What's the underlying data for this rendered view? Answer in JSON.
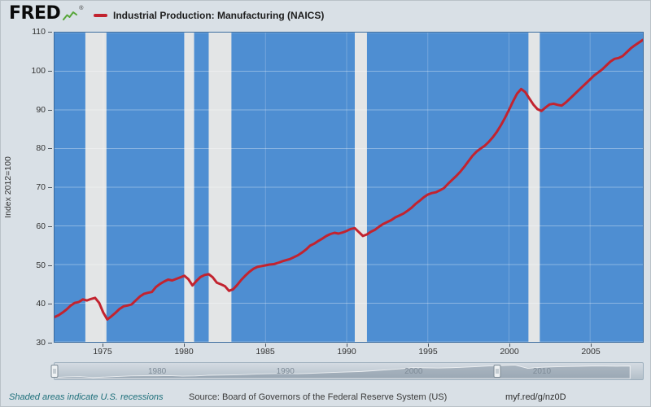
{
  "header": {
    "logo_text": "FRED",
    "logo_reg": "®",
    "series_title": "Industrial Production: Manufacturing (NAICS)"
  },
  "footer": {
    "recession_note": "Shaded areas indicate U.S. recessions",
    "source_label": "Source: Board of Governors of the Federal Reserve System (US)",
    "short_url": "myf.red/g/nz0D"
  },
  "colors": {
    "page_bg": "#d9e0e6",
    "plot_bg": "#4e8ed2",
    "recession_band": "#e3e5e6",
    "line": "#c2232f",
    "grid_horizontal": "rgba(255,255,255,0.35)",
    "grid_vertical": "rgba(255,255,255,0.22)",
    "link": "#1d6f7a",
    "axis_text": "#333333",
    "logo_spark": "#57a639"
  },
  "chart_data": {
    "type": "line",
    "title": "Industrial Production: Manufacturing (NAICS)",
    "xlabel": "",
    "ylabel": "Index 2012=100",
    "x_range": [
      1972,
      2008.25
    ],
    "y_range": [
      30,
      110
    ],
    "y_ticks": [
      30,
      40,
      50,
      60,
      70,
      80,
      90,
      100,
      110
    ],
    "x_ticks": [
      1975,
      1980,
      1985,
      1990,
      1995,
      2000,
      2005
    ],
    "grid": true,
    "legend_position": "top",
    "recessions": [
      [
        1973.9,
        1975.2
      ],
      [
        1980.0,
        1980.6
      ],
      [
        1981.5,
        1982.9
      ],
      [
        1990.5,
        1991.25
      ],
      [
        2001.2,
        2001.9
      ]
    ],
    "series": [
      {
        "name": "Industrial Production: Manufacturing (NAICS)",
        "color": "#c2232f",
        "points": [
          [
            1972.0,
            36.4
          ],
          [
            1972.25,
            36.9
          ],
          [
            1972.5,
            37.6
          ],
          [
            1972.75,
            38.4
          ],
          [
            1973.0,
            39.4
          ],
          [
            1973.25,
            40.1
          ],
          [
            1973.5,
            40.3
          ],
          [
            1973.75,
            41.0
          ],
          [
            1974.0,
            40.7
          ],
          [
            1974.25,
            41.1
          ],
          [
            1974.5,
            41.4
          ],
          [
            1974.75,
            40.1
          ],
          [
            1975.0,
            37.6
          ],
          [
            1975.25,
            35.8
          ],
          [
            1975.5,
            36.6
          ],
          [
            1975.75,
            37.5
          ],
          [
            1976.0,
            38.5
          ],
          [
            1976.25,
            39.2
          ],
          [
            1976.5,
            39.4
          ],
          [
            1976.75,
            39.7
          ],
          [
            1977.0,
            40.7
          ],
          [
            1977.25,
            41.7
          ],
          [
            1977.5,
            42.4
          ],
          [
            1977.75,
            42.7
          ],
          [
            1978.0,
            42.9
          ],
          [
            1978.25,
            44.2
          ],
          [
            1978.5,
            45.0
          ],
          [
            1978.75,
            45.6
          ],
          [
            1979.0,
            46.1
          ],
          [
            1979.25,
            45.9
          ],
          [
            1979.5,
            46.3
          ],
          [
            1979.75,
            46.7
          ],
          [
            1980.0,
            47.1
          ],
          [
            1980.25,
            46.2
          ],
          [
            1980.5,
            44.6
          ],
          [
            1980.75,
            45.8
          ],
          [
            1981.0,
            46.8
          ],
          [
            1981.25,
            47.3
          ],
          [
            1981.5,
            47.5
          ],
          [
            1981.75,
            46.7
          ],
          [
            1982.0,
            45.3
          ],
          [
            1982.25,
            44.9
          ],
          [
            1982.5,
            44.4
          ],
          [
            1982.75,
            43.2
          ],
          [
            1983.0,
            43.6
          ],
          [
            1983.25,
            44.7
          ],
          [
            1983.5,
            46.0
          ],
          [
            1983.75,
            47.1
          ],
          [
            1984.0,
            48.1
          ],
          [
            1984.25,
            48.9
          ],
          [
            1984.5,
            49.4
          ],
          [
            1984.75,
            49.6
          ],
          [
            1985.0,
            49.8
          ],
          [
            1985.25,
            50.0
          ],
          [
            1985.5,
            50.1
          ],
          [
            1985.75,
            50.4
          ],
          [
            1986.0,
            50.8
          ],
          [
            1986.25,
            51.1
          ],
          [
            1986.5,
            51.4
          ],
          [
            1986.75,
            51.9
          ],
          [
            1987.0,
            52.4
          ],
          [
            1987.25,
            53.1
          ],
          [
            1987.5,
            53.9
          ],
          [
            1987.75,
            54.9
          ],
          [
            1988.0,
            55.4
          ],
          [
            1988.25,
            56.1
          ],
          [
            1988.5,
            56.7
          ],
          [
            1988.75,
            57.4
          ],
          [
            1989.0,
            57.9
          ],
          [
            1989.25,
            58.2
          ],
          [
            1989.5,
            58.0
          ],
          [
            1989.75,
            58.3
          ],
          [
            1990.0,
            58.7
          ],
          [
            1990.25,
            59.2
          ],
          [
            1990.5,
            59.4
          ],
          [
            1990.75,
            58.4
          ],
          [
            1991.0,
            57.4
          ],
          [
            1991.25,
            57.8
          ],
          [
            1991.5,
            58.5
          ],
          [
            1991.75,
            59.0
          ],
          [
            1992.0,
            59.8
          ],
          [
            1992.25,
            60.5
          ],
          [
            1992.5,
            61.0
          ],
          [
            1992.75,
            61.5
          ],
          [
            1993.0,
            62.2
          ],
          [
            1993.25,
            62.7
          ],
          [
            1993.5,
            63.2
          ],
          [
            1993.75,
            63.9
          ],
          [
            1994.0,
            64.7
          ],
          [
            1994.25,
            65.7
          ],
          [
            1994.5,
            66.5
          ],
          [
            1994.75,
            67.4
          ],
          [
            1995.0,
            68.1
          ],
          [
            1995.25,
            68.5
          ],
          [
            1995.5,
            68.7
          ],
          [
            1995.75,
            69.2
          ],
          [
            1996.0,
            69.8
          ],
          [
            1996.25,
            70.9
          ],
          [
            1996.5,
            71.9
          ],
          [
            1996.75,
            72.9
          ],
          [
            1997.0,
            74.0
          ],
          [
            1997.25,
            75.3
          ],
          [
            1997.5,
            76.7
          ],
          [
            1997.75,
            78.1
          ],
          [
            1998.0,
            79.2
          ],
          [
            1998.25,
            80.0
          ],
          [
            1998.5,
            80.7
          ],
          [
            1998.75,
            81.7
          ],
          [
            1999.0,
            82.9
          ],
          [
            1999.25,
            84.3
          ],
          [
            1999.5,
            86.0
          ],
          [
            1999.75,
            87.9
          ],
          [
            2000.0,
            90.0
          ],
          [
            2000.25,
            92.2
          ],
          [
            2000.5,
            94.2
          ],
          [
            2000.75,
            95.4
          ],
          [
            2001.0,
            94.6
          ],
          [
            2001.25,
            93.0
          ],
          [
            2001.5,
            91.4
          ],
          [
            2001.75,
            90.2
          ],
          [
            2002.0,
            89.7
          ],
          [
            2002.25,
            90.6
          ],
          [
            2002.5,
            91.4
          ],
          [
            2002.75,
            91.6
          ],
          [
            2003.0,
            91.3
          ],
          [
            2003.25,
            91.1
          ],
          [
            2003.5,
            91.9
          ],
          [
            2003.75,
            92.9
          ],
          [
            2004.0,
            93.9
          ],
          [
            2004.25,
            94.9
          ],
          [
            2004.5,
            95.9
          ],
          [
            2004.75,
            96.9
          ],
          [
            2005.0,
            97.9
          ],
          [
            2005.25,
            98.9
          ],
          [
            2005.5,
            99.7
          ],
          [
            2005.75,
            100.5
          ],
          [
            2006.0,
            101.5
          ],
          [
            2006.25,
            102.5
          ],
          [
            2006.5,
            103.2
          ],
          [
            2006.75,
            103.4
          ],
          [
            2007.0,
            103.9
          ],
          [
            2007.25,
            104.9
          ],
          [
            2007.5,
            105.9
          ],
          [
            2007.75,
            106.7
          ],
          [
            2008.0,
            107.4
          ],
          [
            2008.25,
            108.1
          ]
        ]
      }
    ]
  },
  "slider": {
    "x_range": [
      1972,
      2018
    ],
    "labels": [
      1980,
      1990,
      2000,
      2010
    ],
    "left_handle_year": 1972,
    "right_handle_year": 2006.5,
    "minimap_years": [
      1972,
      1973,
      1974,
      1975,
      1976,
      1977,
      1978,
      1979,
      1980,
      1981,
      1982,
      1983,
      1984,
      1985,
      1986,
      1987,
      1988,
      1989,
      1990,
      1991,
      1992,
      1993,
      1994,
      1995,
      1996,
      1997,
      1998,
      1999,
      2000,
      2001,
      2002,
      2003,
      2004,
      2005,
      2006,
      2007,
      2008,
      2009,
      2010,
      2011,
      2012,
      2013,
      2014,
      2015,
      2016,
      2017
    ],
    "minimap_values": [
      36,
      40,
      41,
      36,
      39,
      42,
      45,
      46,
      46,
      47,
      44,
      45,
      49,
      50,
      51,
      53,
      56,
      58,
      59,
      57.5,
      60,
      62.5,
      65.5,
      68,
      70.5,
      75,
      80,
      85,
      92,
      91,
      90,
      91.5,
      94.5,
      98,
      102,
      104.5,
      107,
      88,
      94,
      96.5,
      98.5,
      99.5,
      101.5,
      101,
      100.5,
      101.5
    ]
  }
}
